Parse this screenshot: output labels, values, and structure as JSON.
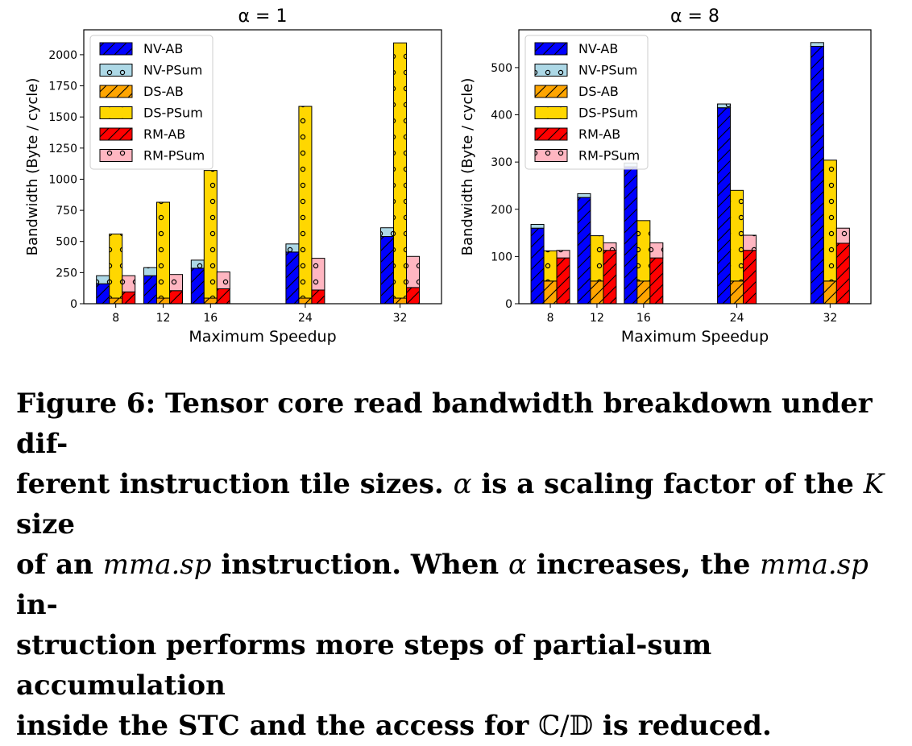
{
  "chart_data": [
    {
      "type": "bar",
      "title": "α = 1",
      "xlabel": "Maximum Speedup",
      "ylabel": "Bandwidth (Byte / cycle)",
      "ylim": [
        0,
        2200
      ],
      "yticks": [
        0,
        250,
        500,
        750,
        1000,
        1250,
        1500,
        1750,
        2000
      ],
      "x": [
        8,
        12,
        16,
        24,
        32
      ],
      "legend_position": "top-left",
      "groups": [
        {
          "name": "NV",
          "ab_series": "NV-AB",
          "psum_series": "NV-PSum",
          "ab": [
            160,
            225,
            285,
            415,
            540
          ],
          "psum": [
            65,
            65,
            65,
            65,
            70
          ]
        },
        {
          "name": "DS",
          "ab_series": "DS-AB",
          "psum_series": "DS-PSum",
          "ab": [
            45,
            45,
            45,
            45,
            45
          ],
          "psum": [
            515,
            770,
            1025,
            1540,
            2050
          ]
        },
        {
          "name": "RM",
          "ab_series": "RM-AB",
          "psum_series": "RM-PSum",
          "ab": [
            95,
            105,
            120,
            110,
            130
          ],
          "psum": [
            130,
            130,
            135,
            255,
            250
          ]
        }
      ]
    },
    {
      "type": "bar",
      "title": "α = 8",
      "xlabel": "Maximum Speedup",
      "ylabel": "Bandwidth (Byte / cycle)",
      "ylim": [
        0,
        580
      ],
      "yticks": [
        0,
        100,
        200,
        300,
        400,
        500
      ],
      "x": [
        8,
        12,
        16,
        24,
        32
      ],
      "legend_position": "top-left",
      "groups": [
        {
          "name": "NV",
          "ab_series": "NV-AB",
          "psum_series": "NV-PSum",
          "ab": [
            160,
            225,
            290,
            415,
            545
          ],
          "psum": [
            8,
            8,
            8,
            8,
            8
          ]
        },
        {
          "name": "DS",
          "ab_series": "DS-AB",
          "psum_series": "DS-PSum",
          "ab": [
            48,
            48,
            48,
            48,
            48
          ],
          "psum": [
            64,
            96,
            128,
            192,
            256
          ]
        },
        {
          "name": "RM",
          "ab_series": "RM-AB",
          "psum_series": "RM-PSum",
          "ab": [
            97,
            113,
            97,
            113,
            128
          ],
          "psum": [
            16,
            16,
            32,
            32,
            32
          ]
        }
      ]
    }
  ],
  "legend": [
    {
      "label": "NV-AB",
      "color": "#0000ff",
      "pattern": "hatch"
    },
    {
      "label": "NV-PSum",
      "color": "#add8e6",
      "pattern": "dots"
    },
    {
      "label": "DS-AB",
      "color": "#ffa500",
      "pattern": "hatch"
    },
    {
      "label": "DS-PSum",
      "color": "#ffd700",
      "pattern": "dots"
    },
    {
      "label": "RM-AB",
      "color": "#ff0000",
      "pattern": "hatch"
    },
    {
      "label": "RM-PSum",
      "color": "#ffb6c1",
      "pattern": "dots"
    }
  ],
  "caption": {
    "line1": "Figure 6: Tensor core read bandwidth breakdown under dif-",
    "line2a": "ferent instruction tile sizes. ",
    "alpha": "α",
    "line2b": " is a scaling factor of the ",
    "K": "K",
    "line2c": " size",
    "line3a": "of an ",
    "mma": "mma.sp",
    "line3b": " instruction. When ",
    "line3c": " increases, the ",
    "line3d": " in-",
    "line4": "struction performs more steps of partial-sum accumulation",
    "line5a": "inside the STC and the access for ",
    "cd": "ℂ/𝔻",
    "line5b": " is reduced."
  }
}
